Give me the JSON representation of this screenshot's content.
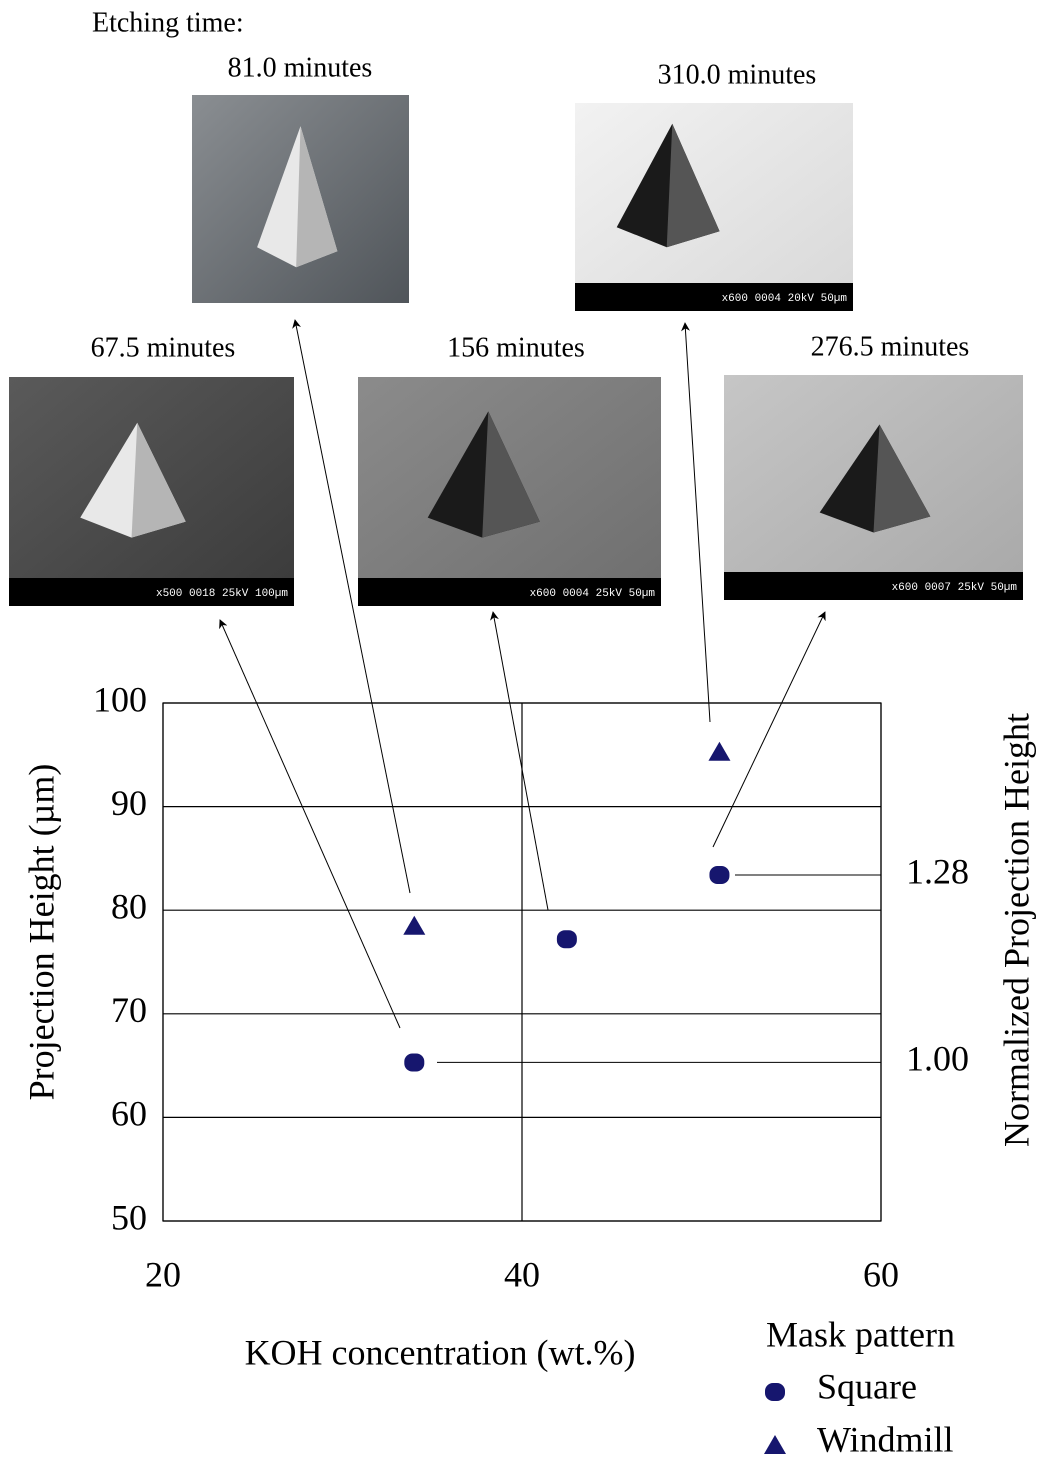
{
  "chart_data": {
    "type": "scatter",
    "annotation": "Etching time:",
    "xlabel": "KOH concentration (wt.%)",
    "ylabel": "Projection Height (µm)",
    "y2label": "Normalized Projection Height",
    "xlim": [
      20,
      60
    ],
    "xticks": [
      20,
      40,
      60
    ],
    "ylim": [
      50,
      100
    ],
    "yticks": [
      50,
      60,
      70,
      80,
      90,
      100
    ],
    "y2lim": [
      0.763,
      1.537
    ],
    "y2ticks": [
      {
        "value": 1,
        "label": "1.00"
      },
      1.28
    ],
    "grid": true,
    "legend_title": "Mask pattern",
    "legend_position": "bottom-right",
    "series": [
      {
        "name": "Square",
        "color": "#16166e",
        "marker": "circle",
        "x": [
          34,
          42.5,
          51
        ],
        "values": [
          65.3,
          77.2,
          83.4
        ]
      },
      {
        "name": "Windmill",
        "color": "#16166e",
        "marker": "triangle",
        "x": [
          34,
          51
        ],
        "values": [
          78.5,
          95.3
        ]
      }
    ],
    "images": [
      {
        "caption": "81.0 minutes"
      },
      {
        "caption": "310.0 minutes",
        "scale_bar": "x600  0004  20kV  50µm"
      },
      {
        "caption": "67.5 minutes",
        "scale_bar": "x500  0018  25kV  100µm"
      },
      {
        "caption": "156 minutes",
        "scale_bar": "x600  0004  25kV  50µm"
      },
      {
        "caption": "276.5 minutes",
        "scale_bar": "x600  0007  25kV  50µm"
      }
    ]
  }
}
